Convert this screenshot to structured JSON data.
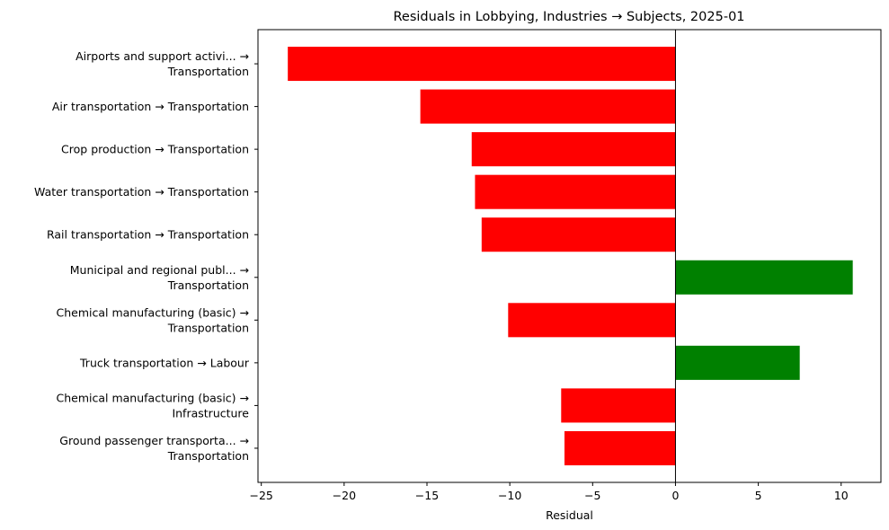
{
  "chart_data": {
    "type": "bar",
    "orientation": "horizontal",
    "title": "Residuals in Lobbying, Industries → Subjects, 2025-01",
    "xlabel": "Residual",
    "ylabel": "",
    "xlim": [
      -25.2,
      12.4
    ],
    "xticks": [
      -25,
      -20,
      -15,
      -10,
      -5,
      0,
      5,
      10
    ],
    "xtick_labels": [
      "−25",
      "−20",
      "−15",
      "−10",
      "−5",
      "0",
      "5",
      "10"
    ],
    "categories": [
      [
        "Airports and support activi... →",
        "Transportation"
      ],
      [
        "Air transportation → Transportation"
      ],
      [
        "Crop production → Transportation"
      ],
      [
        "Water transportation → Transportation"
      ],
      [
        "Rail transportation → Transportation"
      ],
      [
        "Municipal and regional publ... →",
        "Transportation"
      ],
      [
        "Chemical manufacturing (basic) →",
        "Transportation"
      ],
      [
        "Truck transportation → Labour"
      ],
      [
        "Chemical manufacturing (basic) →",
        "Infrastructure"
      ],
      [
        "Ground passenger transporta... →",
        "Transportation"
      ]
    ],
    "values": [
      -23.4,
      -15.4,
      -12.3,
      -12.1,
      -11.7,
      10.7,
      -10.1,
      7.5,
      -6.9,
      -6.7
    ],
    "colors": {
      "positive": "#008000",
      "negative": "#ff0000"
    },
    "zero_line": true,
    "grid": false,
    "legend": "none"
  }
}
